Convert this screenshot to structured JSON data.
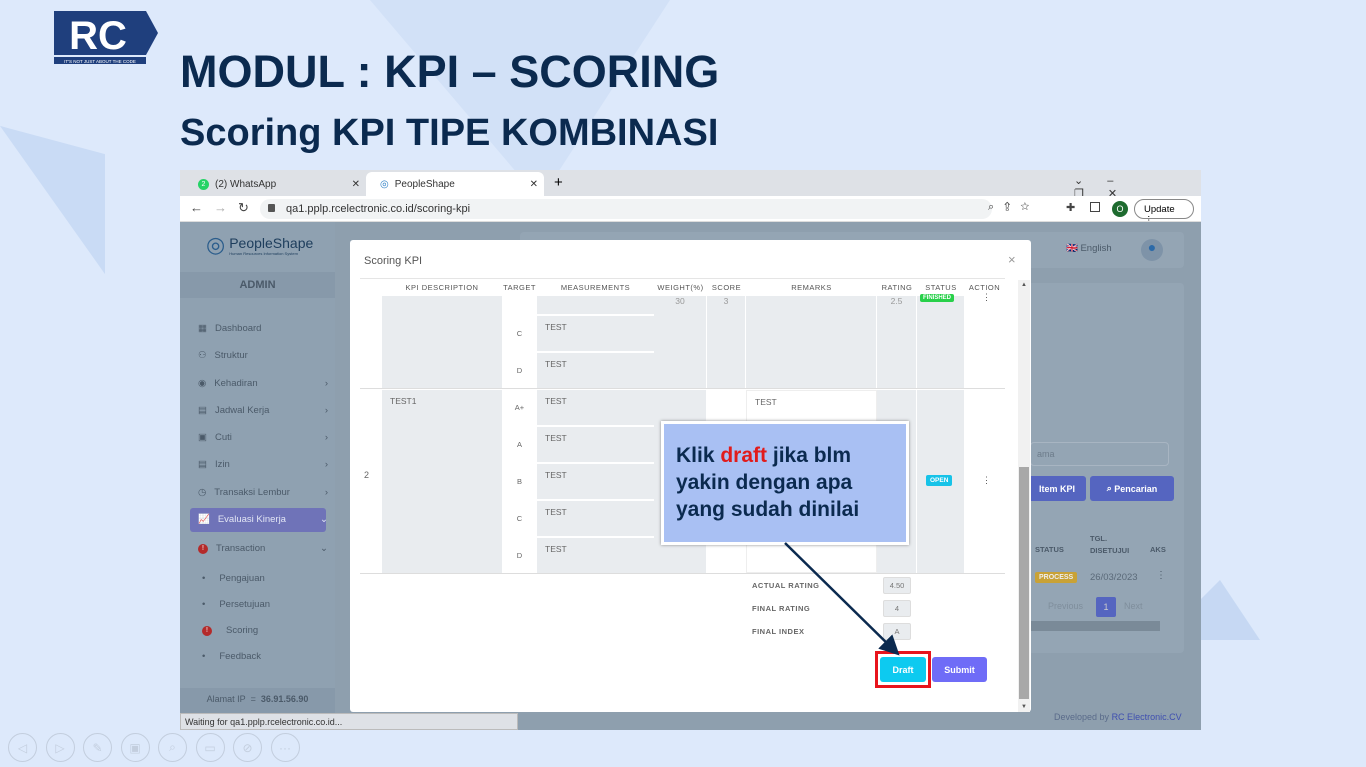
{
  "slide": {
    "title": "MODUL : KPI – SCORING",
    "subtitle": "Scoring KPI TIPE KOMBINASI",
    "logo_text": "RC",
    "logo_tagline": "IT'S NOT JUST ABOUT THE CODE"
  },
  "browser": {
    "tabs": [
      {
        "label": "(2) WhatsApp",
        "badge": "2"
      },
      {
        "label": "PeopleShape"
      }
    ],
    "url": "qa1.pplp.rcelectronic.co.id/scoring-kpi",
    "update_label": "Update",
    "profile_initial": "O",
    "status_text": "Waiting for qa1.pplp.rcelectronic.co.id..."
  },
  "app": {
    "brand": "PeopleShape",
    "brand_tagline": "Human Resources Information System",
    "role": "ADMIN",
    "language": "English",
    "sidebar": [
      {
        "label": "Dashboard"
      },
      {
        "label": "Struktur"
      },
      {
        "label": "Kehadiran",
        "chevron": true
      },
      {
        "label": "Jadwal Kerja",
        "chevron": true
      },
      {
        "label": "Cuti",
        "chevron": true
      },
      {
        "label": "Izin",
        "chevron": true
      },
      {
        "label": "Transaksi Lembur",
        "chevron": true
      },
      {
        "label": "Evaluasi Kinerja",
        "chevron": true,
        "active": true
      },
      {
        "label": "Transaction",
        "chevron": true
      },
      {
        "label": "Pengajuan"
      },
      {
        "label": "Persetujuan"
      },
      {
        "label": "Scoring"
      },
      {
        "label": "Feedback"
      }
    ],
    "ip_label": "Alamat IP",
    "ip_sep": "=",
    "ip_value": "36.91.56.90",
    "search_placeholder": "ama",
    "btn_item_kpi": "Item KPI",
    "btn_search": "Pencarian",
    "bg_table": {
      "headers": [
        "STATUS",
        "TGL. DISETUJUI",
        "AKS"
      ],
      "status": "PROCESS",
      "date": "26/03/2023",
      "action": "⋮"
    },
    "pagination": {
      "prev": "Previous",
      "page": "1",
      "next": "Next"
    },
    "footer_prefix": "Developed by",
    "footer_link": "RC Electronic.CV"
  },
  "modal": {
    "title": "Scoring KPI",
    "headers": [
      "KPI DESCRIPTION",
      "TARGET",
      "MEASUREMENTS",
      "WEIGHT(%)",
      "SCORE",
      "REMARKS",
      "RATING",
      "STATUS",
      "ACTION"
    ],
    "row1": {
      "targets": [
        "C",
        "D"
      ],
      "measurements": [
        "TEST",
        "TEST"
      ],
      "weight": "30",
      "score": "3",
      "rating": "2.5",
      "status": "FINISHED",
      "action": "⋮"
    },
    "row2": {
      "no": "2",
      "description": "TEST1",
      "targets": [
        "A+",
        "A",
        "B",
        "C",
        "D"
      ],
      "measurements": [
        "TEST",
        "TEST",
        "TEST",
        "TEST",
        "TEST"
      ],
      "remarks": "TEST",
      "status": "OPEN",
      "action": "⋮"
    },
    "summary": [
      {
        "label": "ACTUAL RATING",
        "value": "4.50"
      },
      {
        "label": "FINAL RATING",
        "value": "4"
      },
      {
        "label": "FINAL INDEX",
        "value": "A"
      }
    ],
    "draft_label": "Draft",
    "submit_label": "Submit"
  },
  "callout": {
    "pre": "Klik ",
    "highlight": "draft",
    "post": " jika blm yakin dengan apa yang sudah dinilai"
  },
  "colors": {
    "navy": "#0b2a4f",
    "draft": "#0dcaf0",
    "submit": "#6f6cf7",
    "highlight": "#e11b1b",
    "finished": "#28d04a",
    "open": "#17c3e8",
    "process": "#c9a236"
  }
}
